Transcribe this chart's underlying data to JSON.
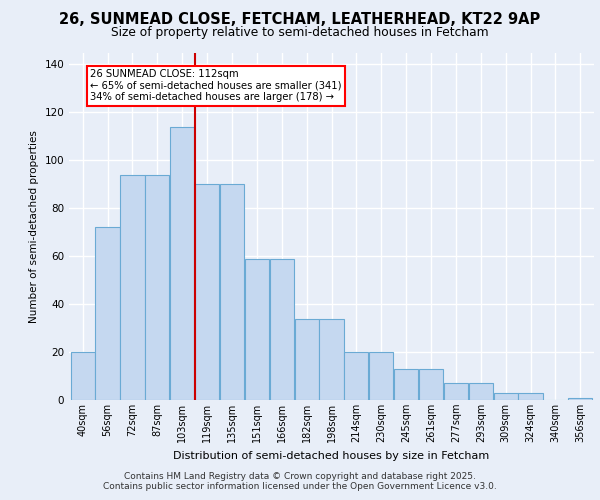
{
  "title_line1": "26, SUNMEAD CLOSE, FETCHAM, LEATHERHEAD, KT22 9AP",
  "title_line2": "Size of property relative to semi-detached houses in Fetcham",
  "xlabel": "Distribution of semi-detached houses by size in Fetcham",
  "ylabel": "Number of semi-detached properties",
  "categories": [
    "40sqm",
    "56sqm",
    "72sqm",
    "87sqm",
    "103sqm",
    "119sqm",
    "135sqm",
    "151sqm",
    "166sqm",
    "182sqm",
    "198sqm",
    "214sqm",
    "230sqm",
    "245sqm",
    "261sqm",
    "277sqm",
    "293sqm",
    "309sqm",
    "324sqm",
    "340sqm",
    "356sqm"
  ],
  "bar_heights": [
    20,
    72,
    94,
    94,
    114,
    90,
    90,
    59,
    59,
    34,
    34,
    20,
    20,
    13,
    13,
    7,
    7,
    3,
    3,
    0,
    1
  ],
  "bar_color": "#c5d8f0",
  "bar_edge_color": "#6aaad4",
  "vline_position": 5,
  "vline_color": "#cc0000",
  "annotation_title": "26 SUNMEAD CLOSE: 112sqm",
  "annotation_line1": "← 65% of semi-detached houses are smaller (341)",
  "annotation_line2": "34% of semi-detached houses are larger (178) →",
  "ylim": [
    0,
    145
  ],
  "yticks": [
    0,
    20,
    40,
    60,
    80,
    100,
    120,
    140
  ],
  "footer_line1": "Contains HM Land Registry data © Crown copyright and database right 2025.",
  "footer_line2": "Contains public sector information licensed under the Open Government Licence v3.0.",
  "background_color": "#e8eef8",
  "grid_color": "#c8d4e8"
}
